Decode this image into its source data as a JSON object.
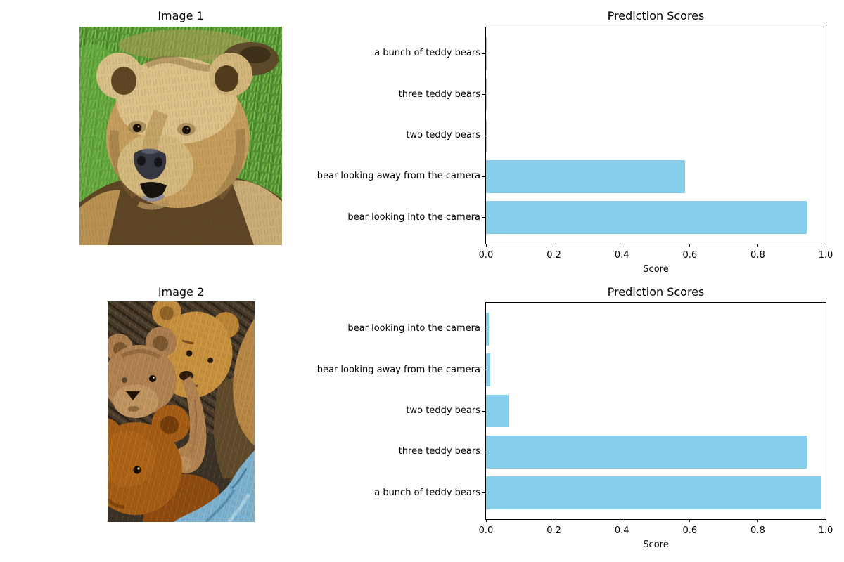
{
  "figure": {
    "background": "#ffffff",
    "text_color": "#000000"
  },
  "images": [
    {
      "title": "Image 1",
      "depicts": "brown bear looking into the camera on green grass"
    },
    {
      "title": "Image 2",
      "depicts": "pile of brown teddy bears with light blue fabric"
    }
  ],
  "chart_data": [
    {
      "type": "bar",
      "orientation": "horizontal",
      "title": "Prediction Scores",
      "xlabel": "Score",
      "xlim": [
        0.0,
        1.0
      ],
      "xticks": [
        0.0,
        0.2,
        0.4,
        0.6,
        0.8,
        1.0
      ],
      "grid": false,
      "legend": "none",
      "bar_color": "#87CEEB",
      "categories_top_to_bottom": [
        "a bunch of teddy bears",
        "three teddy bears",
        "two teddy bears",
        "bear looking away from the camera",
        "bear looking into the camera"
      ],
      "values": [
        0.0005,
        0.0008,
        0.0015,
        0.585,
        0.945
      ]
    },
    {
      "type": "bar",
      "orientation": "horizontal",
      "title": "Prediction Scores",
      "xlabel": "Score",
      "xlim": [
        0.0,
        1.0
      ],
      "xticks": [
        0.0,
        0.2,
        0.4,
        0.6,
        0.8,
        1.0
      ],
      "grid": false,
      "legend": "none",
      "bar_color": "#87CEEB",
      "categories_top_to_bottom": [
        "bear looking into the camera",
        "bear looking away from the camera",
        "two teddy bears",
        "three teddy bears",
        "a bunch of teddy bears"
      ],
      "values": [
        0.008,
        0.012,
        0.066,
        0.945,
        0.988
      ]
    }
  ]
}
